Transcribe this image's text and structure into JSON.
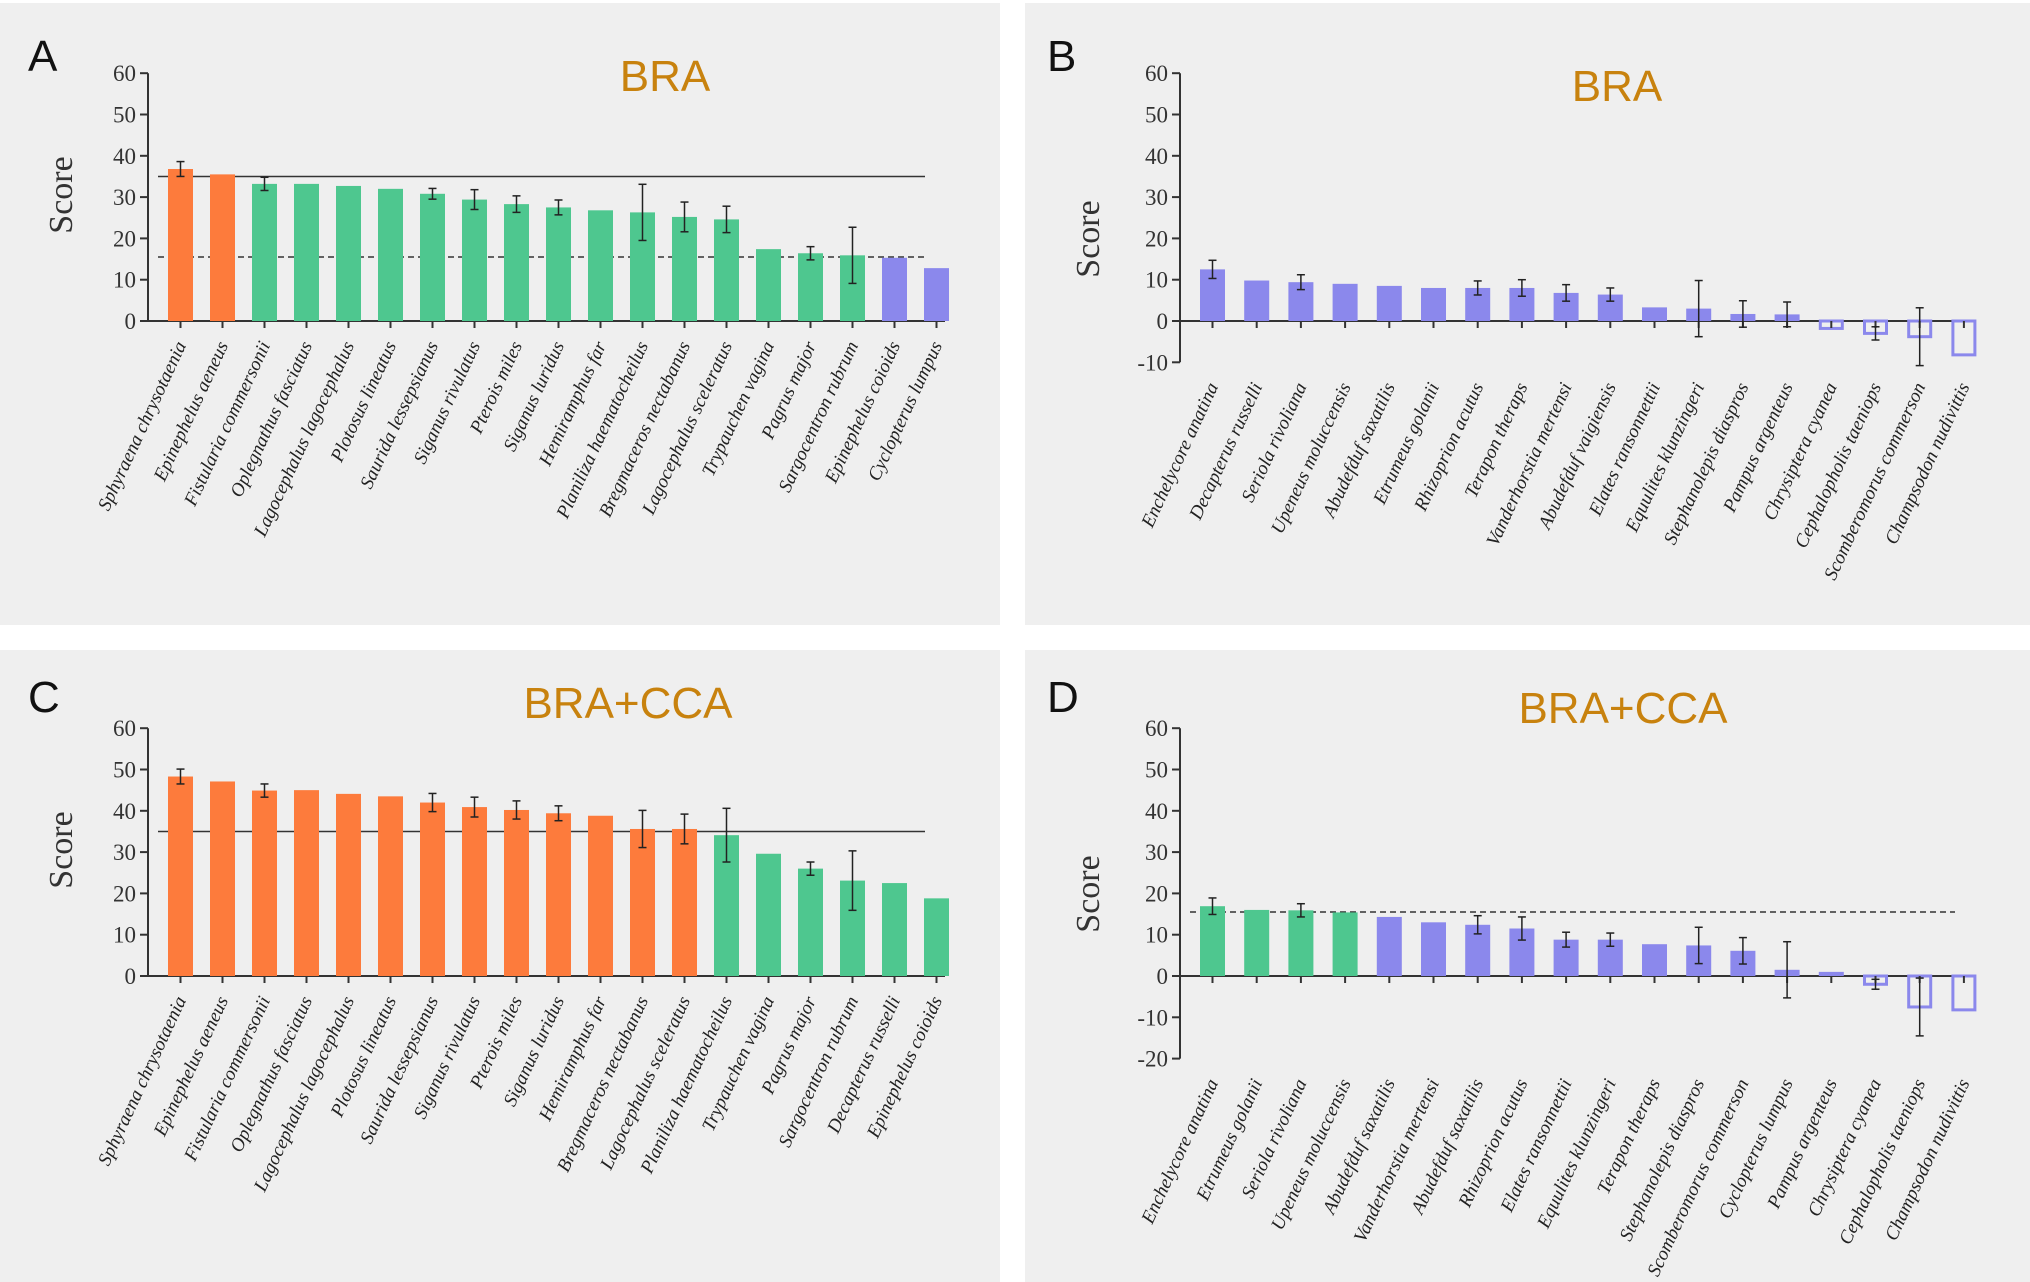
{
  "colors": {
    "orange": "#fd7b3c",
    "green": "#4ec78f",
    "purple": "#8b88ec",
    "title": "#c8820e",
    "panel_bg": "#efefef"
  },
  "chart_data": [
    {
      "id": "A",
      "type": "bar",
      "panel_label": "A",
      "title": "BRA",
      "xlabel": "",
      "ylabel": "Score",
      "ylim": [
        0,
        60
      ],
      "yticks": [
        0,
        10,
        20,
        30,
        40,
        50,
        60
      ],
      "reference_lines": [
        {
          "value": 35,
          "style": "solid"
        },
        {
          "value": 15.5,
          "style": "dashed"
        }
      ],
      "categories": [
        "Sphyraena chrysotaenia",
        "Epinephelus aeneus",
        "Fistularia commersonii",
        "Oplegnathus fasciatus",
        "Lagocephalus lagocephalus",
        "Plotosus lineatus",
        "Saurida lessepsianus",
        "Siganus rivulatus",
        "Pterois miles",
        "Siganus luridus",
        "Hemiramphus far",
        "Planiliza haematocheilus",
        "Bregmaceros nectabanus",
        "Lagocephalus sceleratus",
        "Trypauchen vagina",
        "Pagrus major",
        "Sargocentron rubrum",
        "Epinephelus coioids",
        "Cyclopterus lumpus"
      ],
      "values": [
        36.8,
        35.5,
        33.2,
        33.2,
        32.7,
        32.0,
        30.8,
        29.4,
        28.3,
        27.5,
        26.8,
        26.3,
        25.2,
        24.6,
        17.4,
        16.4,
        15.9,
        15.3,
        12.8
      ],
      "errors": [
        1.8,
        0,
        1.6,
        0,
        0,
        0,
        1.3,
        2.4,
        2.0,
        1.8,
        0,
        6.8,
        3.6,
        3.2,
        0,
        1.6,
        6.8,
        0,
        0
      ],
      "colors": [
        "orange",
        "orange",
        "green",
        "green",
        "green",
        "green",
        "green",
        "green",
        "green",
        "green",
        "green",
        "green",
        "green",
        "green",
        "green",
        "green",
        "green",
        "purple",
        "purple"
      ],
      "hollow": [],
      "grid": false
    },
    {
      "id": "B",
      "type": "bar",
      "panel_label": "B",
      "title": "BRA",
      "xlabel": "",
      "ylabel": "Score",
      "ylim": [
        -10,
        60
      ],
      "yticks": [
        -10,
        0,
        10,
        20,
        30,
        40,
        50,
        60
      ],
      "reference_lines": [],
      "categories": [
        "Enchelycore anatina",
        "Decapterus russelli",
        "Seriola rivoliana",
        "Upeneus moluccensis",
        "Abudefduf saxatilis",
        "Etrumeus golanii",
        "Rhizoprion acutus",
        "Terapon theraps",
        "Vanderhorstia mertensi",
        "Abudefduf vaigiensis",
        "Elates ransonnettii",
        "Equulites klunzingeri",
        "Stephanolepis diaspros",
        "Pampus argenteus",
        "Chrysiptera cyanea",
        "Cephalopholis taeniops",
        "Scomberomorus commerson",
        "Champsodon nudivittis"
      ],
      "values": [
        12.5,
        9.8,
        9.4,
        9.0,
        8.5,
        8.0,
        8.0,
        8.0,
        6.8,
        6.4,
        3.3,
        3.0,
        1.7,
        1.6,
        -1.8,
        -3.0,
        -3.8,
        -8.2
      ],
      "errors": [
        2.2,
        0,
        1.8,
        0,
        0,
        0,
        1.7,
        2.0,
        2.0,
        1.6,
        0,
        6.8,
        3.2,
        3.0,
        0,
        1.6,
        7.0,
        0
      ],
      "colors": [
        "purple",
        "purple",
        "purple",
        "purple",
        "purple",
        "purple",
        "purple",
        "purple",
        "purple",
        "purple",
        "purple",
        "purple",
        "purple",
        "purple",
        "purple",
        "purple",
        "purple",
        "purple"
      ],
      "hollow": [
        14,
        15,
        16,
        17
      ],
      "grid": false
    },
    {
      "id": "C",
      "type": "bar",
      "panel_label": "C",
      "title": "BRA+CCA",
      "xlabel": "",
      "ylabel": "Score",
      "ylim": [
        0,
        60
      ],
      "yticks": [
        0,
        10,
        20,
        30,
        40,
        50,
        60
      ],
      "reference_lines": [
        {
          "value": 35,
          "style": "solid"
        }
      ],
      "categories": [
        "Sphyraena chrysotaenia",
        "Epinephelus aeneus",
        "Fistularia commersonii",
        "Oplegnathus fasciatus",
        "Lagocephalus lagocephalus",
        "Plotosus lineatus",
        "Saurida lessepsianus",
        "Siganus rivulatus",
        "Pterois miles",
        "Siganus luridus",
        "Hemiramphus far",
        "Bregmaceros nectabanus",
        "Lagocephalus sceleratus",
        "Planiliza haematocheilus",
        "Trypauchen vagina",
        "Pagrus major",
        "Sargocentron rubrum",
        "Decapterus russelli",
        "Epinephelus coioids"
      ],
      "values": [
        48.3,
        47.1,
        44.9,
        45.0,
        44.1,
        43.5,
        42.0,
        40.9,
        40.2,
        39.4,
        38.8,
        35.6,
        35.6,
        34.1,
        29.6,
        26.0,
        23.1,
        22.5,
        18.8
      ],
      "errors": [
        1.8,
        0,
        1.6,
        0,
        0,
        0,
        2.2,
        2.4,
        2.2,
        1.8,
        0,
        4.5,
        3.6,
        6.5,
        0,
        1.6,
        7.2,
        0,
        0
      ],
      "colors": [
        "orange",
        "orange",
        "orange",
        "orange",
        "orange",
        "orange",
        "orange",
        "orange",
        "orange",
        "orange",
        "orange",
        "orange",
        "orange",
        "green",
        "green",
        "green",
        "green",
        "green",
        "green"
      ],
      "hollow": [],
      "grid": false
    },
    {
      "id": "D",
      "type": "bar",
      "panel_label": "D",
      "title": "BRA+CCA",
      "xlabel": "",
      "ylabel": "Score",
      "ylim": [
        -20,
        60
      ],
      "yticks": [
        -20,
        -10,
        0,
        10,
        20,
        30,
        40,
        50,
        60
      ],
      "reference_lines": [
        {
          "value": 15.5,
          "style": "dashed"
        }
      ],
      "categories": [
        "Enchelycore anatina",
        "Etrumeus golanii",
        "Seriola rivoliana",
        "Upeneus moluccensis",
        "Abudefduf saxatilis",
        "Vanderhorstia mertensi",
        "Abudefduf saxatilis",
        "Rhizoprion acutus",
        "Elates ransonnettii",
        "Equulites klunzingeri",
        "Terapon theraps",
        "Stephanolepis diaspros",
        "Scomberomorus commerson",
        "Cyclopterus lumpus",
        "Pampus argenteus",
        "Chrysiptera cyanea",
        "Cephalopholis taeniops",
        "Champsodon nudivittis"
      ],
      "values": [
        16.9,
        16.0,
        15.9,
        15.4,
        14.3,
        13.0,
        12.4,
        11.5,
        8.8,
        8.8,
        7.7,
        7.4,
        6.1,
        1.5,
        1.0,
        -2.0,
        -7.5,
        -8.2
      ],
      "errors": [
        2.0,
        0,
        1.6,
        0,
        0,
        0,
        2.2,
        2.8,
        1.8,
        1.6,
        0,
        4.4,
        3.2,
        6.8,
        0,
        1.2,
        7.0,
        0
      ],
      "colors": [
        "green",
        "green",
        "green",
        "green",
        "purple",
        "purple",
        "purple",
        "purple",
        "purple",
        "purple",
        "purple",
        "purple",
        "purple",
        "purple",
        "purple",
        "purple",
        "purple",
        "purple"
      ],
      "hollow": [
        15,
        16,
        17
      ],
      "grid": false
    }
  ]
}
